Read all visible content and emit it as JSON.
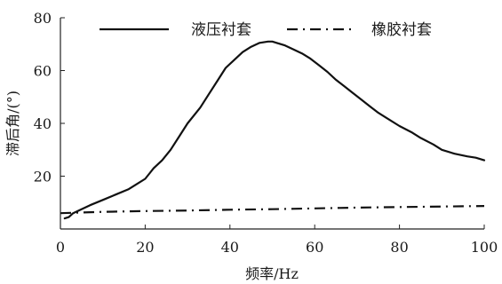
{
  "chart_data": {
    "type": "line",
    "xlabel": "频率/Hz",
    "ylabel": "滞后角/(°)",
    "xlim": [
      0,
      100
    ],
    "ylim": [
      0,
      80
    ],
    "xticks": [
      0,
      20,
      40,
      60,
      80,
      100
    ],
    "yticks": [
      20,
      40,
      60,
      80
    ],
    "grid": false,
    "legend_position": "top",
    "series": [
      {
        "name": "液压衬套",
        "style": "solid",
        "color": "#111111",
        "x": [
          1,
          2,
          3,
          5,
          7,
          10,
          13,
          16,
          18,
          20,
          21,
          22,
          24,
          26,
          28,
          30,
          33,
          35,
          37,
          39,
          41,
          43,
          45,
          47,
          49,
          50,
          51,
          53,
          55,
          57,
          59,
          61,
          63,
          65,
          67,
          69,
          71,
          73,
          75,
          77,
          80,
          83,
          85,
          88,
          90,
          93,
          96,
          98,
          100
        ],
        "y": [
          4,
          4.5,
          6,
          7.5,
          9,
          11,
          13,
          15,
          17,
          19,
          21,
          23,
          26,
          30,
          35,
          40,
          46,
          51,
          56,
          61,
          64,
          67,
          69,
          70.5,
          71,
          71,
          70.5,
          69.5,
          68,
          66.5,
          64.5,
          62,
          59.5,
          56.5,
          54,
          51.5,
          49,
          46.5,
          44,
          42,
          39,
          36.5,
          34.5,
          32,
          30,
          28.5,
          27.5,
          27,
          26
        ]
      },
      {
        "name": "橡胶衬套",
        "style": "dash-dot",
        "color": "#111111",
        "x": [
          0,
          10,
          20,
          30,
          40,
          50,
          60,
          70,
          80,
          90,
          100
        ],
        "y": [
          6,
          6.5,
          6.8,
          7,
          7.3,
          7.5,
          7.8,
          8.1,
          8.3,
          8.5,
          8.7
        ]
      }
    ]
  }
}
